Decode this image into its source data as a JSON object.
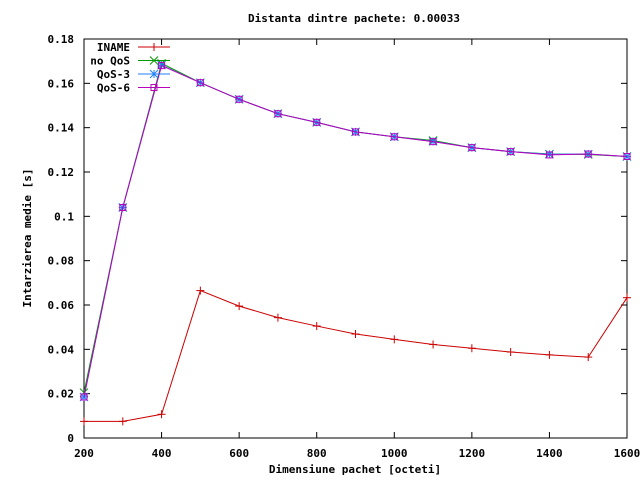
{
  "chart_data": {
    "type": "line",
    "title": "Distanta dintre pachete: 0.00033",
    "xlabel": "Dimensiune pachet [octeti]",
    "ylabel": "Intarzierea medie [s]",
    "xlim": [
      200,
      1600
    ],
    "ylim": [
      0,
      0.18
    ],
    "xticks": [
      200,
      400,
      600,
      800,
      1000,
      1200,
      1400,
      1600
    ],
    "xtick_labels": [
      "200",
      "400",
      "600",
      "800",
      "1000",
      "1200",
      "1400",
      "1600"
    ],
    "yticks": [
      0,
      0.02,
      0.04,
      0.06,
      0.08,
      0.1,
      0.12,
      0.14,
      0.16,
      0.18
    ],
    "ytick_labels": [
      "0",
      "0.02",
      "0.04",
      "0.06",
      "0.08",
      "0.1",
      "0.12",
      "0.14",
      "0.16",
      "0.18"
    ],
    "grid": false,
    "legend_position": "top-left",
    "x": [
      200,
      300,
      400,
      500,
      600,
      700,
      800,
      900,
      1000,
      1100,
      1200,
      1300,
      1400,
      1500,
      1600
    ],
    "series": [
      {
        "name": "INAME",
        "color": "#cc0000",
        "marker": "plus",
        "values": [
          0.0075,
          0.0075,
          0.0107,
          0.0665,
          0.0595,
          0.0543,
          0.0505,
          0.0469,
          0.0445,
          0.0422,
          0.0405,
          0.0388,
          0.0375,
          0.0365,
          0.0633
        ]
      },
      {
        "name": "no QoS",
        "color": "#009900",
        "marker": "cross",
        "values": [
          0.0205,
          0.104,
          0.169,
          0.1603,
          0.1528,
          0.1463,
          0.1424,
          0.1381,
          0.1359,
          0.1342,
          0.131,
          0.1292,
          0.1281,
          0.1279,
          0.127
        ]
      },
      {
        "name": "QoS-3",
        "color": "#1f7fff",
        "marker": "star",
        "values": [
          0.0185,
          0.104,
          0.1682,
          0.1603,
          0.1528,
          0.1463,
          0.1424,
          0.1381,
          0.1359,
          0.1338,
          0.131,
          0.1292,
          0.128,
          0.1281,
          0.127
        ]
      },
      {
        "name": "QoS-6",
        "color": "#bb00bb",
        "marker": "square",
        "values": [
          0.0185,
          0.104,
          0.168,
          0.1603,
          0.1528,
          0.1463,
          0.1424,
          0.1381,
          0.1359,
          0.1337,
          0.131,
          0.1292,
          0.1277,
          0.1281,
          0.127
        ]
      }
    ]
  }
}
